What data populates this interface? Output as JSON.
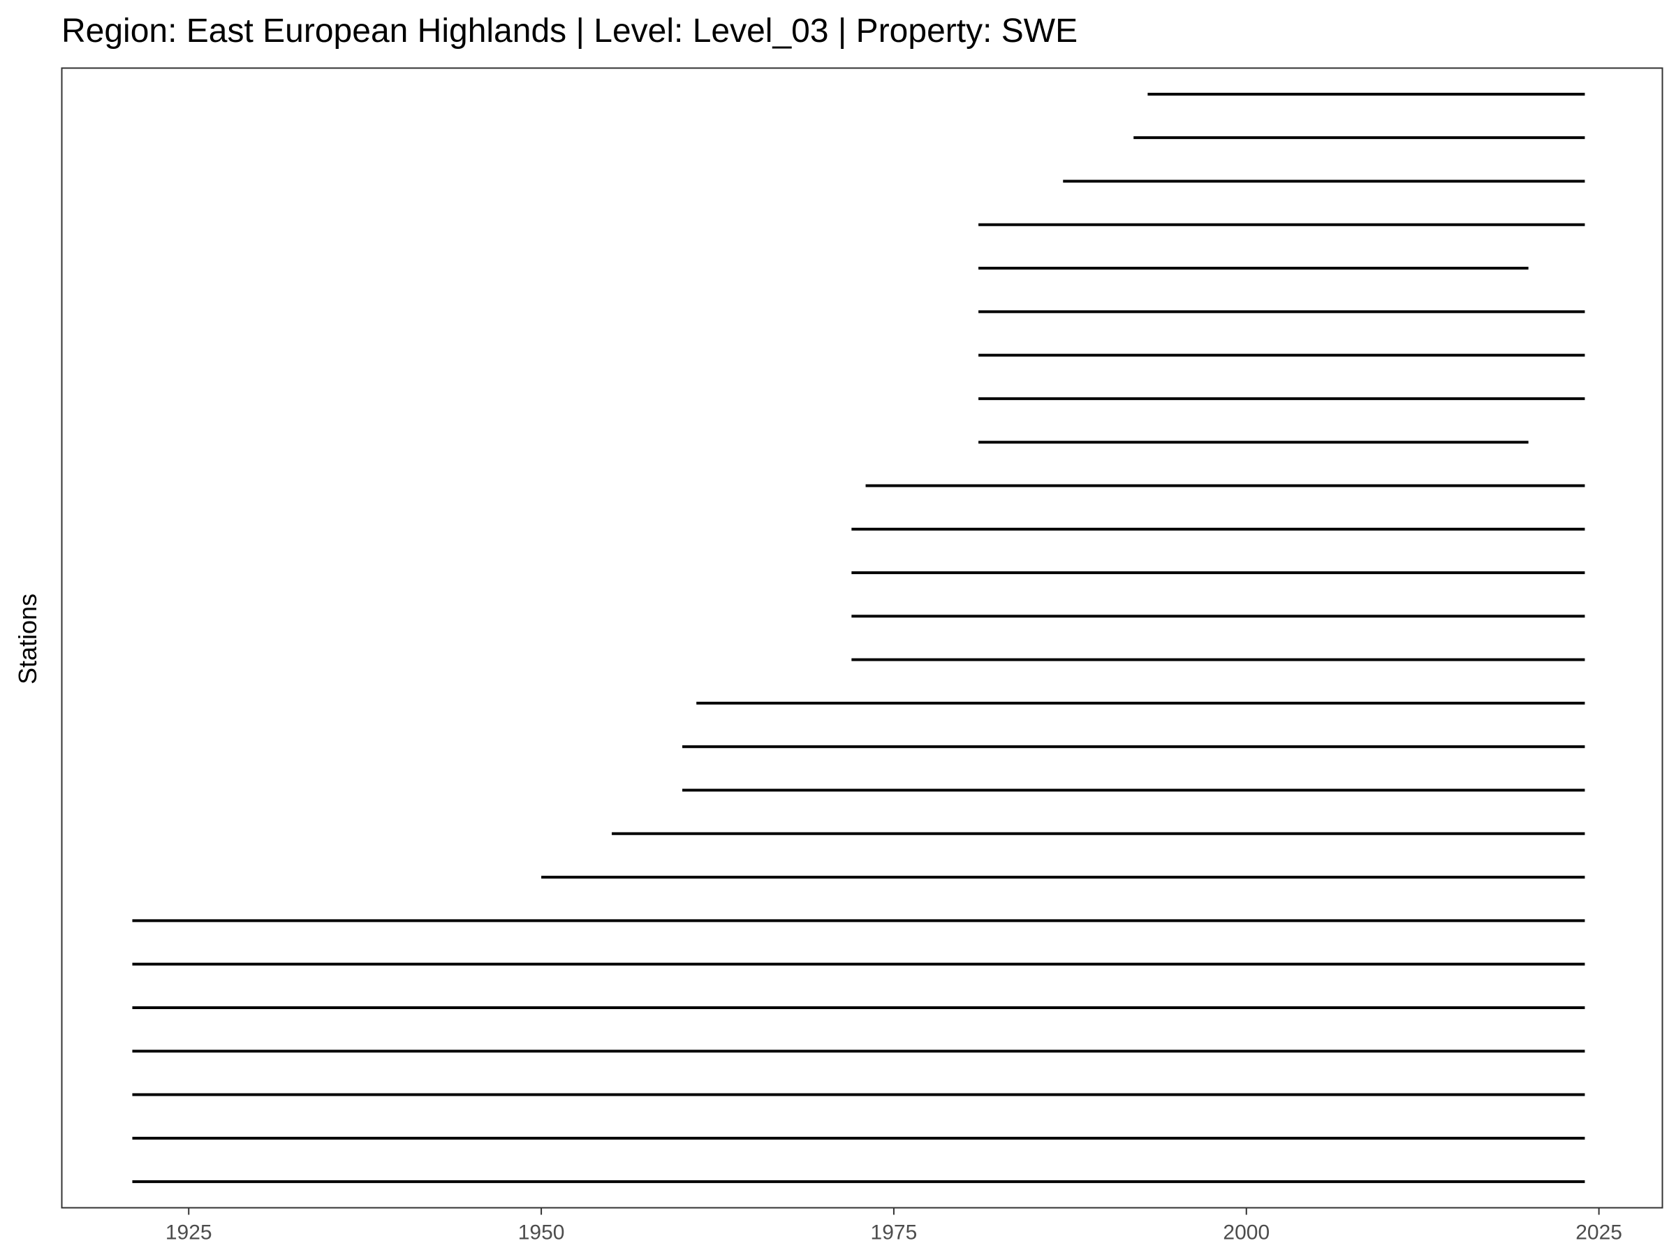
{
  "chart_data": {
    "type": "timeline",
    "title": "Region: East European Highlands | Level: Level_03 | Property: SWE",
    "xlabel": "",
    "ylabel": "Stations",
    "xlim": [
      1916,
      2029.5
    ],
    "x_ticks": [
      1925,
      1950,
      1975,
      2000,
      2025
    ],
    "grid": false,
    "legend": "none",
    "line_color": "#000000",
    "series": [
      {
        "start": 1921,
        "end": 2024
      },
      {
        "start": 1921,
        "end": 2024
      },
      {
        "start": 1921,
        "end": 2024
      },
      {
        "start": 1921,
        "end": 2024
      },
      {
        "start": 1921,
        "end": 2024
      },
      {
        "start": 1921,
        "end": 2024
      },
      {
        "start": 1921,
        "end": 2024
      },
      {
        "start": 1950,
        "end": 2024
      },
      {
        "start": 1955,
        "end": 2024
      },
      {
        "start": 1960,
        "end": 2024
      },
      {
        "start": 1960,
        "end": 2024
      },
      {
        "start": 1961,
        "end": 2024
      },
      {
        "start": 1972,
        "end": 2024
      },
      {
        "start": 1972,
        "end": 2024
      },
      {
        "start": 1972,
        "end": 2024
      },
      {
        "start": 1972,
        "end": 2024
      },
      {
        "start": 1973,
        "end": 2024
      },
      {
        "start": 1981,
        "end": 2020
      },
      {
        "start": 1981,
        "end": 2024
      },
      {
        "start": 1981,
        "end": 2024
      },
      {
        "start": 1981,
        "end": 2024
      },
      {
        "start": 1981,
        "end": 2020
      },
      {
        "start": 1981,
        "end": 2024
      },
      {
        "start": 1987,
        "end": 2024
      },
      {
        "start": 1992,
        "end": 2024
      },
      {
        "start": 1993,
        "end": 2024
      }
    ]
  }
}
